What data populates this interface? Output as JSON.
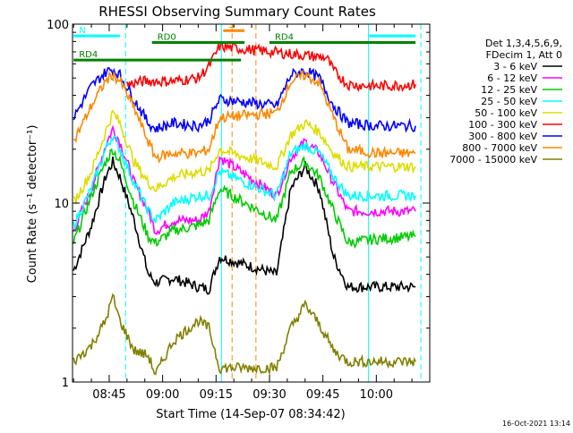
{
  "chart_data": {
    "type": "line",
    "title": "RHESSI Observing Summary Count Rates",
    "xlabel": "Start Time (14-Sep-07 08:34:42)",
    "ylabel": "Count Rate (s⁻¹ detector⁻¹)",
    "yscale": "log",
    "ylim": [
      1,
      100
    ],
    "xlim_minutes_after_0830": [
      4.7,
      105
    ],
    "y_tick_labels": [
      "1",
      "10",
      "100"
    ],
    "x_ticks": [
      {
        "label": "08:45",
        "minute": 15
      },
      {
        "label": "09:00",
        "minute": 30
      },
      {
        "label": "09:15",
        "minute": 45
      },
      {
        "label": "09:30",
        "minute": 60
      },
      {
        "label": "09:45",
        "minute": 75
      },
      {
        "label": "10:00",
        "minute": 90
      }
    ],
    "legend_header": [
      "Det 1,3,4,5,6,9,",
      "FDecim 1, Att 0"
    ],
    "legend_placement": "right",
    "series": [
      {
        "name": "3 - 6 keV",
        "color": "#000000",
        "points": [
          [
            5,
            4.2
          ],
          [
            10,
            7.5
          ],
          [
            14,
            14
          ],
          [
            16,
            17
          ],
          [
            18,
            14
          ],
          [
            22,
            8
          ],
          [
            26,
            4
          ],
          [
            28,
            3.6
          ],
          [
            33,
            3.8
          ],
          [
            40,
            3.4
          ],
          [
            43,
            3.3
          ],
          [
            46,
            5
          ],
          [
            62,
            4
          ],
          [
            66,
            12
          ],
          [
            70,
            16
          ],
          [
            74,
            12
          ],
          [
            78,
            5
          ],
          [
            82,
            3.4
          ],
          [
            90,
            3.4
          ],
          [
            101,
            3.4
          ]
        ]
      },
      {
        "name": "6 - 12 keV",
        "color": "#ff00ff",
        "points": [
          [
            5,
            7
          ],
          [
            10,
            12
          ],
          [
            14,
            21
          ],
          [
            16,
            26
          ],
          [
            18,
            22
          ],
          [
            22,
            13
          ],
          [
            26,
            9
          ],
          [
            28,
            7
          ],
          [
            33,
            8
          ],
          [
            40,
            8
          ],
          [
            43,
            9
          ],
          [
            46,
            18
          ],
          [
            62,
            11
          ],
          [
            66,
            18
          ],
          [
            70,
            22
          ],
          [
            74,
            19
          ],
          [
            78,
            13
          ],
          [
            82,
            9
          ],
          [
            90,
            9
          ],
          [
            101,
            9
          ]
        ]
      },
      {
        "name": "12 - 25 keV",
        "color": "#00cc00",
        "points": [
          [
            5,
            6
          ],
          [
            10,
            11
          ],
          [
            14,
            17
          ],
          [
            16,
            20
          ],
          [
            18,
            17
          ],
          [
            22,
            10
          ],
          [
            26,
            6.5
          ],
          [
            28,
            6
          ],
          [
            33,
            7
          ],
          [
            40,
            7.5
          ],
          [
            43,
            8
          ],
          [
            46,
            12
          ],
          [
            62,
            8
          ],
          [
            66,
            15
          ],
          [
            70,
            17
          ],
          [
            74,
            14
          ],
          [
            78,
            9
          ],
          [
            82,
            6
          ],
          [
            90,
            6.3
          ],
          [
            101,
            6.5
          ]
        ]
      },
      {
        "name": "25 - 50 keV",
        "color": "#00ffff",
        "points": [
          [
            5,
            7.5
          ],
          [
            10,
            12
          ],
          [
            14,
            20
          ],
          [
            16,
            24
          ],
          [
            18,
            20
          ],
          [
            22,
            13
          ],
          [
            26,
            9
          ],
          [
            28,
            8
          ],
          [
            33,
            10
          ],
          [
            40,
            11
          ],
          [
            43,
            11
          ],
          [
            46,
            15
          ],
          [
            62,
            11
          ],
          [
            66,
            19
          ],
          [
            70,
            21
          ],
          [
            74,
            19
          ],
          [
            78,
            14
          ],
          [
            82,
            11
          ],
          [
            90,
            11
          ],
          [
            101,
            11
          ]
        ]
      },
      {
        "name": "50 - 100 keV",
        "color": "#dddd00",
        "points": [
          [
            5,
            10
          ],
          [
            10,
            15
          ],
          [
            14,
            25
          ],
          [
            16,
            32
          ],
          [
            18,
            28
          ],
          [
            22,
            17
          ],
          [
            26,
            13
          ],
          [
            28,
            12
          ],
          [
            33,
            14
          ],
          [
            40,
            15
          ],
          [
            43,
            15
          ],
          [
            46,
            20
          ],
          [
            62,
            16
          ],
          [
            66,
            24
          ],
          [
            70,
            28
          ],
          [
            74,
            25
          ],
          [
            78,
            19
          ],
          [
            82,
            16
          ],
          [
            90,
            16
          ],
          [
            101,
            16
          ]
        ]
      },
      {
        "name": "100 - 300 keV",
        "color": "#ff0000",
        "points": [
          [
            20,
            46
          ],
          [
            25,
            48
          ],
          [
            33,
            48
          ],
          [
            40,
            50
          ],
          [
            43,
            58
          ],
          [
            46,
            75
          ],
          [
            76,
            65
          ],
          [
            78,
            55
          ],
          [
            82,
            46
          ],
          [
            90,
            45
          ],
          [
            101,
            46
          ]
        ]
      },
      {
        "name": "300 - 800 keV",
        "color": "#0000ff",
        "points": [
          [
            5,
            30
          ],
          [
            10,
            45
          ],
          [
            14,
            54
          ],
          [
            16,
            56
          ],
          [
            18,
            52
          ],
          [
            22,
            38
          ],
          [
            26,
            28
          ],
          [
            28,
            26
          ],
          [
            33,
            28
          ],
          [
            40,
            27
          ],
          [
            43,
            29
          ],
          [
            46,
            38
          ],
          [
            62,
            35
          ],
          [
            66,
            52
          ],
          [
            70,
            55
          ],
          [
            74,
            50
          ],
          [
            78,
            35
          ],
          [
            82,
            28
          ],
          [
            90,
            27
          ],
          [
            101,
            27
          ]
        ]
      },
      {
        "name": "800 - 7000 keV",
        "color": "#ff8800",
        "points": [
          [
            5,
            22
          ],
          [
            10,
            35
          ],
          [
            14,
            48
          ],
          [
            16,
            52
          ],
          [
            18,
            48
          ],
          [
            22,
            34
          ],
          [
            26,
            22
          ],
          [
            28,
            18
          ],
          [
            33,
            19
          ],
          [
            40,
            19
          ],
          [
            43,
            20
          ],
          [
            46,
            30
          ],
          [
            62,
            32
          ],
          [
            66,
            48
          ],
          [
            70,
            52
          ],
          [
            74,
            47
          ],
          [
            78,
            30
          ],
          [
            82,
            20
          ],
          [
            90,
            19
          ],
          [
            101,
            19
          ]
        ]
      },
      {
        "name": "7000 - 15000 keV",
        "color": "#808000",
        "points": [
          [
            5,
            1.3
          ],
          [
            10,
            1.6
          ],
          [
            14,
            2.2
          ],
          [
            16,
            3
          ],
          [
            18,
            2.2
          ],
          [
            22,
            1.5
          ],
          [
            26,
            1.4
          ],
          [
            28,
            1.1
          ],
          [
            33,
            1.7
          ],
          [
            40,
            2.2
          ],
          [
            43,
            2
          ],
          [
            46,
            1.2
          ],
          [
            62,
            1.2
          ],
          [
            66,
            2
          ],
          [
            70,
            2.7
          ],
          [
            74,
            2.1
          ],
          [
            78,
            1.5
          ],
          [
            82,
            1.3
          ],
          [
            90,
            1.3
          ],
          [
            101,
            1.3
          ]
        ]
      }
    ],
    "annotations": [
      {
        "label": "N",
        "color": "#00ffff",
        "level": 86,
        "x_from": 5,
        "x_to": 18
      },
      {
        "label": "RD0",
        "color": "#008000",
        "level": 79,
        "x_from": 27,
        "x_to": 53
      },
      {
        "label": "RD4",
        "color": "#008000",
        "level": 63,
        "x_from": 5,
        "x_to": 52
      },
      {
        "label": "RD4",
        "color": "#008000",
        "level": 79,
        "x_from": 60,
        "x_to": 101
      },
      {
        "label": "S",
        "color": "#ff8800",
        "level": 92,
        "x_from": 47,
        "x_to": 53
      },
      {
        "label": "",
        "color": "#00ffff",
        "level": 86,
        "x_from": 88,
        "x_to": 101
      }
    ],
    "vlines": [
      {
        "minute": 46.5,
        "color": "#00ffff",
        "style": "solid"
      },
      {
        "minute": 87.8,
        "color": "#00ffff",
        "style": "solid"
      },
      {
        "minute": 19.6,
        "color": "#00ffff",
        "style": "dashed"
      },
      {
        "minute": 102.5,
        "color": "#00ffff",
        "style": "dashed"
      },
      {
        "minute": 49.5,
        "color": "#ff8800",
        "style": "dashed"
      },
      {
        "minute": 56.2,
        "color": "#ff8800",
        "style": "dashed"
      }
    ]
  },
  "footer": {
    "timestamp": "16-Oct-2021 13:14"
  }
}
